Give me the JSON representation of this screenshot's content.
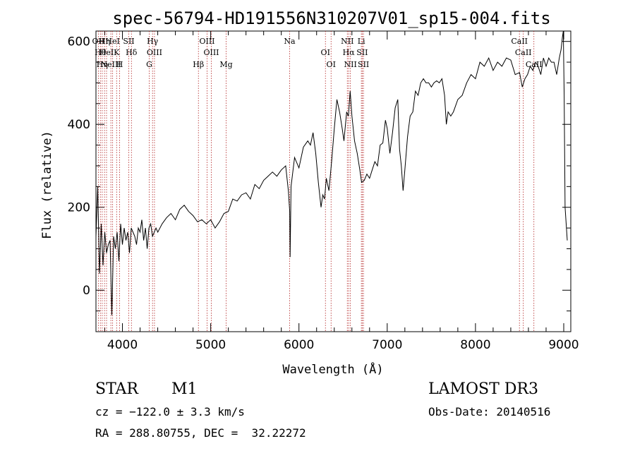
{
  "chart_data": {
    "type": "line",
    "title": "spec-56794-HD191556N310207V01_sp15-004.fits",
    "xlabel": "Wavelength (Å)",
    "ylabel": "Flux (relative)",
    "xlim": [
      3700,
      9080
    ],
    "ylim": [
      -100,
      625
    ],
    "xticks": [
      4000,
      5000,
      6000,
      7000,
      8000,
      9000
    ],
    "yticks": [
      0,
      200,
      400,
      600
    ],
    "grid": false,
    "series": [
      {
        "x": [
          3700,
          3720,
          3740,
          3760,
          3780,
          3800,
          3820,
          3840,
          3860,
          3880,
          3900,
          3920,
          3940,
          3960,
          3980,
          4000,
          4020,
          4040,
          4060,
          4080,
          4100,
          4120,
          4140,
          4160,
          4180,
          4200,
          4220,
          4240,
          4260,
          4280,
          4300,
          4320,
          4340,
          4360,
          4380,
          4400,
          4450,
          4500,
          4550,
          4600,
          4650,
          4700,
          4750,
          4800,
          4850,
          4900,
          4950,
          5000,
          5050,
          5100,
          5150,
          5200,
          5250,
          5300,
          5350,
          5400,
          5450,
          5500,
          5550,
          5600,
          5650,
          5700,
          5750,
          5800,
          5850,
          5880,
          5895,
          5900,
          5910,
          5950,
          6000,
          6050,
          6100,
          6130,
          6160,
          6190,
          6220,
          6250,
          6270,
          6290,
          6310,
          6340,
          6370,
          6400,
          6430,
          6460,
          6490,
          6510,
          6540,
          6560,
          6580,
          6600,
          6630,
          6660,
          6690,
          6710,
          6740,
          6770,
          6800,
          6830,
          6860,
          6890,
          6920,
          6950,
          6980,
          7000,
          7030,
          7060,
          7090,
          7120,
          7140,
          7160,
          7180,
          7200,
          7230,
          7260,
          7290,
          7320,
          7350,
          7380,
          7410,
          7440,
          7470,
          7500,
          7530,
          7560,
          7590,
          7620,
          7650,
          7670,
          7690,
          7720,
          7750,
          7800,
          7850,
          7900,
          7950,
          8000,
          8050,
          8100,
          8150,
          8200,
          8250,
          8300,
          8350,
          8400,
          8450,
          8500,
          8530,
          8560,
          8590,
          8620,
          8650,
          8680,
          8710,
          8740,
          8770,
          8800,
          8830,
          8860,
          8890,
          8920,
          8950,
          8970,
          8985,
          8995,
          9005,
          9015,
          9040
        ],
        "y": [
          130,
          250,
          40,
          160,
          60,
          140,
          90,
          110,
          120,
          -60,
          130,
          100,
          140,
          70,
          160,
          110,
          150,
          120,
          140,
          90,
          150,
          140,
          130,
          110,
          150,
          140,
          170,
          120,
          150,
          100,
          150,
          160,
          130,
          140,
          150,
          140,
          160,
          175,
          185,
          170,
          195,
          205,
          190,
          180,
          165,
          170,
          160,
          170,
          150,
          165,
          185,
          190,
          220,
          215,
          230,
          235,
          220,
          255,
          245,
          265,
          275,
          285,
          275,
          290,
          300,
          240,
          190,
          80,
          250,
          320,
          295,
          345,
          360,
          350,
          380,
          330,
          260,
          200,
          230,
          220,
          270,
          240,
          310,
          390,
          460,
          430,
          390,
          360,
          430,
          420,
          480,
          420,
          360,
          330,
          290,
          260,
          265,
          280,
          270,
          290,
          310,
          300,
          350,
          355,
          410,
          390,
          330,
          380,
          440,
          460,
          340,
          300,
          240,
          290,
          370,
          420,
          430,
          480,
          470,
          500,
          510,
          500,
          500,
          490,
          500,
          505,
          500,
          510,
          470,
          400,
          430,
          420,
          430,
          460,
          470,
          500,
          520,
          510,
          550,
          540,
          560,
          530,
          550,
          540,
          560,
          555,
          520,
          525,
          490,
          510,
          520,
          540,
          530,
          550,
          540,
          520,
          560,
          540,
          560,
          550,
          550,
          520,
          560,
          580,
          610,
          625,
          470,
          200,
          120
        ]
      }
    ],
    "lines": [
      {
        "x": 3727,
        "label": "OII"
      },
      {
        "x": 3750,
        "label": "Hθ"
      },
      {
        "x": 3771,
        "label": "Hη"
      },
      {
        "x": 3797,
        "label": "Hη"
      },
      {
        "x": 3820,
        "label": "HeI"
      },
      {
        "x": 3869,
        "label": "NeIII"
      },
      {
        "x": 3889,
        "label": "HeI"
      },
      {
        "x": 3934,
        "label": "K"
      },
      {
        "x": 3968,
        "label": "H"
      },
      {
        "x": 4072,
        "label": "SII"
      },
      {
        "x": 4102,
        "label": "Hδ"
      },
      {
        "x": 4304,
        "label": "G"
      },
      {
        "x": 4341,
        "label": "Hγ"
      },
      {
        "x": 4363,
        "label": "OIII"
      },
      {
        "x": 4861,
        "label": "Hβ"
      },
      {
        "x": 4959,
        "label": "OIII"
      },
      {
        "x": 5007,
        "label": "OIII"
      },
      {
        "x": 5175,
        "label": "Mg"
      },
      {
        "x": 5894,
        "label": "Na"
      },
      {
        "x": 6300,
        "label": "OI"
      },
      {
        "x": 6364,
        "label": "OI"
      },
      {
        "x": 6548,
        "label": "NII"
      },
      {
        "x": 6563,
        "label": "Hα"
      },
      {
        "x": 6583,
        "label": "NII"
      },
      {
        "x": 6707,
        "label": "Li"
      },
      {
        "x": 6717,
        "label": "SII"
      },
      {
        "x": 6731,
        "label": "SII"
      },
      {
        "x": 8498,
        "label": "CaII"
      },
      {
        "x": 8542,
        "label": "CaII"
      },
      {
        "x": 8662,
        "label": "CaII"
      }
    ],
    "line_color": "#b22222"
  },
  "info": {
    "object_class": "STAR",
    "subclass": "M1",
    "survey": "LAMOST DR3",
    "redshift": "cz = −122.0 ± 3.3 km/s",
    "obs_date": "Obs-Date: 20140516",
    "coords": "RA = 288.80755, DEC =  32.22272"
  }
}
